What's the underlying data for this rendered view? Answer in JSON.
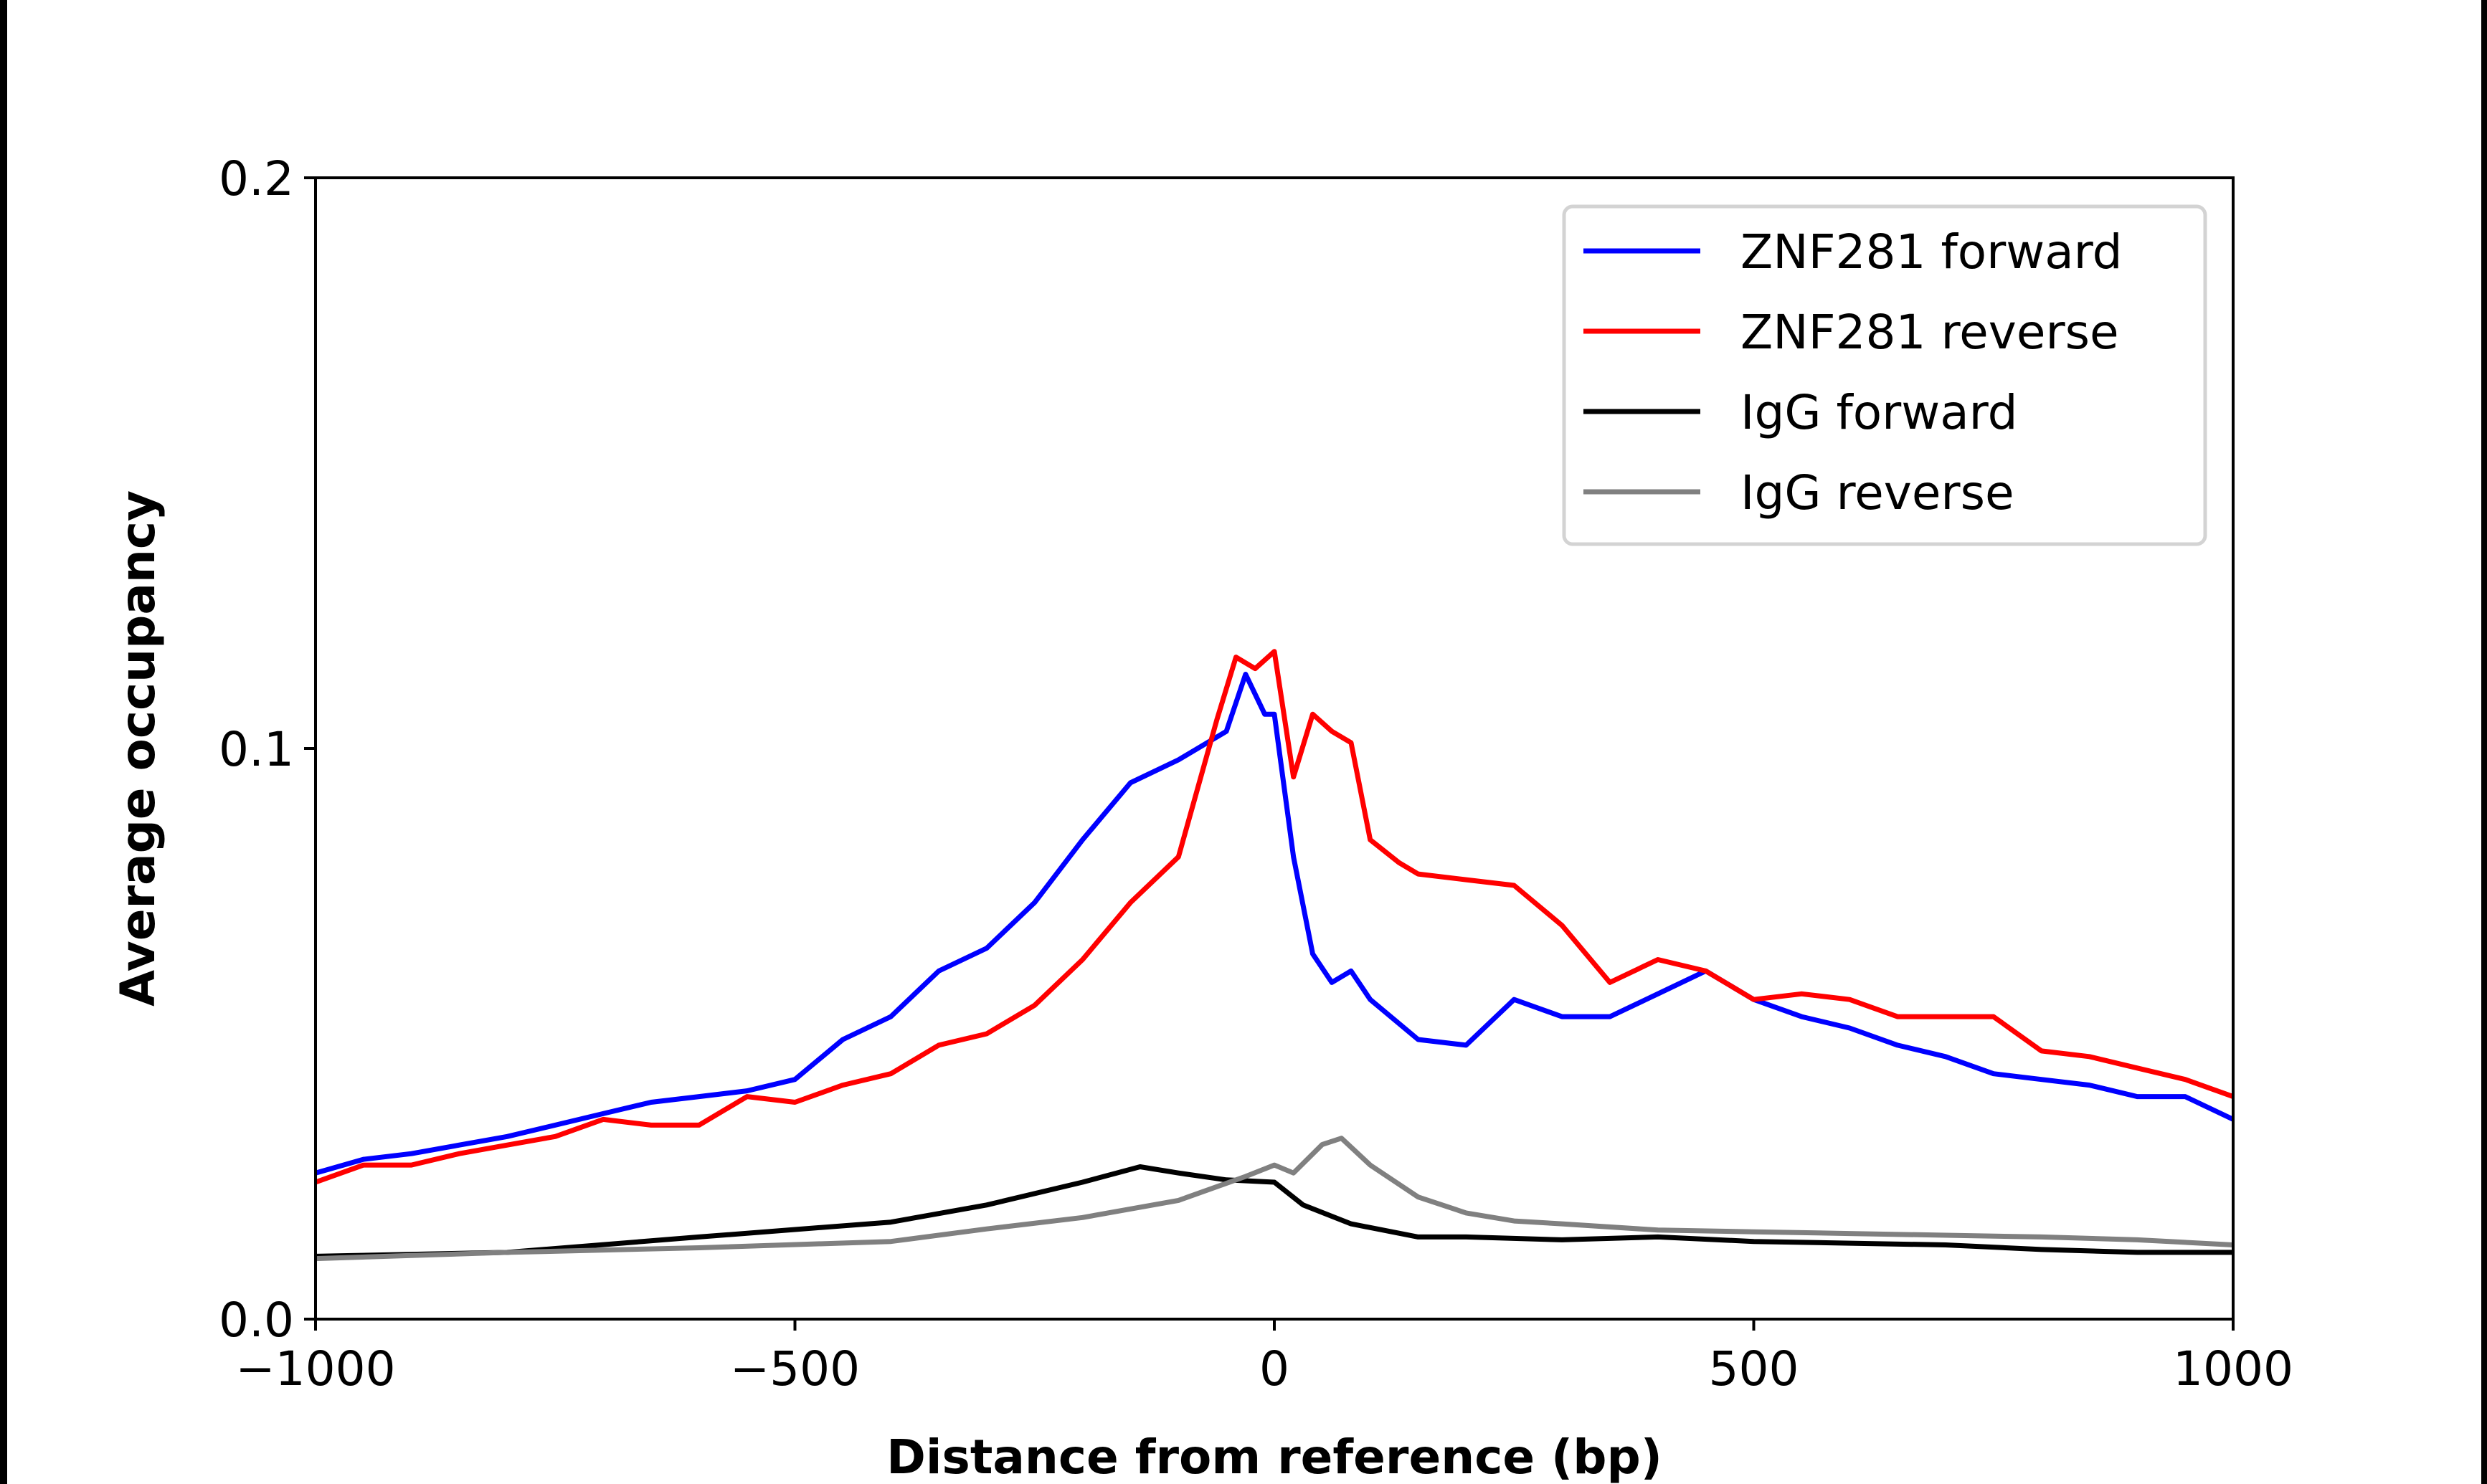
{
  "chart_data": {
    "type": "line",
    "title": "",
    "xlabel": "Distance from reference (bp)",
    "ylabel": "Average occupancy",
    "xlim": [
      -1000,
      1000
    ],
    "ylim": [
      0,
      0.2
    ],
    "xticks": [
      -1000,
      -500,
      0,
      500,
      1000
    ],
    "xtick_labels": [
      "−1000",
      "−500",
      "0",
      "500",
      "1000"
    ],
    "yticks": [
      0.0,
      0.1,
      0.2
    ],
    "ytick_labels": [
      "0.0",
      "0.1",
      "0.2"
    ],
    "grid": false,
    "legend_position": "top-right",
    "series": [
      {
        "name": "ZNF281 forward",
        "color": "#0000ff",
        "x": [
          -1000,
          -950,
          -900,
          -850,
          -800,
          -750,
          -700,
          -650,
          -600,
          -550,
          -500,
          -450,
          -400,
          -350,
          -300,
          -250,
          -200,
          -150,
          -100,
          -50,
          -30,
          -10,
          0,
          20,
          40,
          60,
          80,
          100,
          150,
          200,
          250,
          300,
          350,
          400,
          450,
          500,
          550,
          600,
          650,
          700,
          750,
          800,
          850,
          900,
          950,
          1000
        ],
        "y": [
          0.0256,
          0.028,
          0.029,
          0.0305,
          0.032,
          0.034,
          0.036,
          0.038,
          0.039,
          0.04,
          0.042,
          0.049,
          0.053,
          0.061,
          0.065,
          0.073,
          0.084,
          0.094,
          0.098,
          0.103,
          0.113,
          0.106,
          0.106,
          0.081,
          0.064,
          0.059,
          0.061,
          0.056,
          0.049,
          0.048,
          0.056,
          0.053,
          0.053,
          0.057,
          0.061,
          0.056,
          0.053,
          0.051,
          0.048,
          0.046,
          0.043,
          0.042,
          0.041,
          0.039,
          0.039,
          0.035
        ]
      },
      {
        "name": "ZNF281 reverse",
        "color": "#ff0000",
        "x": [
          -1000,
          -950,
          -900,
          -850,
          -800,
          -750,
          -700,
          -650,
          -600,
          -550,
          -500,
          -450,
          -400,
          -350,
          -300,
          -250,
          -200,
          -150,
          -100,
          -60,
          -40,
          -20,
          0,
          20,
          40,
          60,
          80,
          100,
          130,
          150,
          200,
          250,
          300,
          350,
          400,
          450,
          500,
          550,
          600,
          650,
          700,
          750,
          800,
          850,
          900,
          950,
          1000
        ],
        "y": [
          0.024,
          0.027,
          0.027,
          0.029,
          0.0305,
          0.032,
          0.035,
          0.034,
          0.034,
          0.039,
          0.038,
          0.041,
          0.043,
          0.048,
          0.05,
          0.055,
          0.063,
          0.073,
          0.081,
          0.105,
          0.116,
          0.114,
          0.117,
          0.095,
          0.106,
          0.103,
          0.101,
          0.084,
          0.08,
          0.078,
          0.077,
          0.076,
          0.069,
          0.059,
          0.063,
          0.061,
          0.056,
          0.057,
          0.056,
          0.053,
          0.053,
          0.053,
          0.047,
          0.046,
          0.044,
          0.042,
          0.039
        ]
      },
      {
        "name": "IgG forward",
        "color": "#000000",
        "x": [
          -1000,
          -800,
          -600,
          -400,
          -300,
          -200,
          -140,
          -100,
          -50,
          0,
          30,
          80,
          150,
          200,
          300,
          400,
          500,
          600,
          700,
          800,
          900,
          1000
        ],
        "y": [
          0.011,
          0.0117,
          0.0144,
          0.017,
          0.02,
          0.024,
          0.0267,
          0.0256,
          0.0244,
          0.024,
          0.02,
          0.0167,
          0.0144,
          0.0144,
          0.0139,
          0.0144,
          0.0136,
          0.0133,
          0.013,
          0.0122,
          0.0117,
          0.0117
        ]
      },
      {
        "name": "IgG reverse",
        "color": "#808080",
        "x": [
          -1000,
          -800,
          -600,
          -400,
          -300,
          -200,
          -100,
          -30,
          0,
          20,
          50,
          70,
          100,
          150,
          200,
          250,
          300,
          400,
          500,
          600,
          700,
          800,
          900,
          1000
        ],
        "y": [
          0.0106,
          0.0117,
          0.0125,
          0.0136,
          0.0158,
          0.0178,
          0.0208,
          0.025,
          0.027,
          0.0256,
          0.0306,
          0.0317,
          0.027,
          0.0214,
          0.0186,
          0.0172,
          0.0167,
          0.0156,
          0.0153,
          0.015,
          0.0147,
          0.0144,
          0.0139,
          0.013
        ]
      }
    ]
  }
}
